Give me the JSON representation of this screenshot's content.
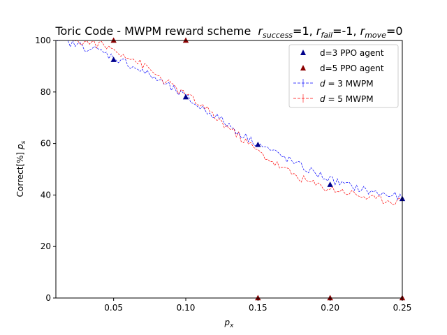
{
  "chart_data": {
    "type": "line",
    "title": "Toric Code - MWPM reward scheme",
    "title_math": [
      {
        "base": "r",
        "sub": "success",
        "value": "=1, "
      },
      {
        "base": "r",
        "sub": "fail",
        "value": "=-1, "
      },
      {
        "base": "r",
        "sub": "move",
        "value": "=0"
      }
    ],
    "xlabel": {
      "base": "p",
      "sub": "x"
    },
    "ylabel": {
      "prefix": "Correct[%] ",
      "base": "p",
      "sub": "s"
    },
    "xlim": [
      0.01,
      0.25
    ],
    "ylim": [
      0,
      100
    ],
    "x_ticks": [
      0.05,
      0.1,
      0.15,
      0.2,
      0.25
    ],
    "x_tick_labels": [
      "0.05",
      "0.10",
      "0.15",
      "0.20",
      "0.25"
    ],
    "y_ticks": [
      0,
      20,
      40,
      60,
      80,
      100
    ],
    "y_tick_labels": [
      "0",
      "20",
      "40",
      "60",
      "80",
      "100"
    ],
    "grid": false,
    "legend_position": "top-right",
    "series": [
      {
        "name": "d=3 PPO agent",
        "kind": "scatter",
        "marker": "triangle",
        "color": "#00008b",
        "x": [
          0.05,
          0.1,
          0.15,
          0.2,
          0.25
        ],
        "y": [
          92.5,
          78,
          59.5,
          44,
          38.5
        ]
      },
      {
        "name": "d=5 PPO agent",
        "kind": "scatter",
        "marker": "triangle",
        "color": "#8b0000",
        "x": [
          0.05,
          0.1,
          0.15,
          0.2,
          0.25
        ],
        "y": [
          100,
          100,
          0,
          0,
          0
        ]
      },
      {
        "name": "d = 3 MWPM",
        "legend_math": {
          "base": "d",
          "rest": " = 3 MWPM"
        },
        "kind": "line",
        "dashed": true,
        "color": "#0000ff",
        "x": [
          0.01,
          0.02,
          0.03,
          0.04,
          0.05,
          0.06,
          0.07,
          0.08,
          0.09,
          0.1,
          0.11,
          0.12,
          0.13,
          0.14,
          0.15,
          0.16,
          0.17,
          0.18,
          0.19,
          0.2,
          0.21,
          0.22,
          0.23,
          0.24,
          0.25
        ],
        "y": [
          100,
          99,
          97.5,
          96,
          93.5,
          91,
          88,
          85,
          81.5,
          78,
          74,
          71,
          67,
          63,
          60,
          57,
          54,
          51,
          48.5,
          46,
          44,
          42.5,
          41,
          40,
          39
        ]
      },
      {
        "name": "d = 5 MWPM",
        "legend_math": {
          "base": "d",
          "rest": " = 5 MWPM"
        },
        "kind": "line",
        "dashed": true,
        "color": "#ff0000",
        "x": [
          0.01,
          0.02,
          0.03,
          0.04,
          0.05,
          0.06,
          0.07,
          0.08,
          0.09,
          0.1,
          0.11,
          0.12,
          0.13,
          0.14,
          0.15,
          0.16,
          0.17,
          0.18,
          0.19,
          0.2,
          0.21,
          0.22,
          0.23,
          0.24,
          0.25
        ],
        "y": [
          100,
          100,
          99.5,
          98.5,
          96.5,
          94,
          90.5,
          86.5,
          82.5,
          79,
          75,
          70.5,
          66,
          61.5,
          57,
          53,
          49.5,
          46.5,
          44,
          42.5,
          41.5,
          40,
          38.5,
          38,
          37.5
        ]
      }
    ]
  }
}
